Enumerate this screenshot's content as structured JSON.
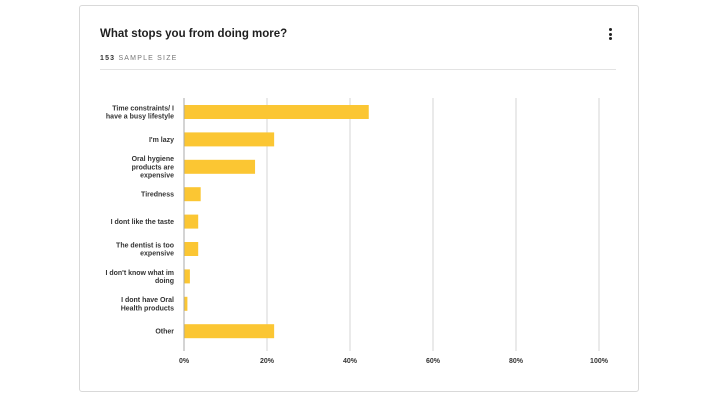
{
  "header": {
    "title": "What stops you from doing more?",
    "sample_size": "153",
    "sample_label": "SAMPLE SIZE"
  },
  "colors": {
    "bar": "#fbc633",
    "grid": "#d6d6d6",
    "axis": "#aaaaaa"
  },
  "chart_data": {
    "type": "bar",
    "orientation": "horizontal",
    "categories": [
      [
        "Time constraints/ I",
        "have a busy lifestyle"
      ],
      [
        "I'm lazy"
      ],
      [
        "Oral hygiene",
        "products are",
        "expensive"
      ],
      [
        "Tiredness"
      ],
      [
        "I dont like the taste"
      ],
      [
        "The dentist is too",
        "expensive"
      ],
      [
        "I don't know what im",
        "doing"
      ],
      [
        "I dont have Oral",
        "Health products"
      ],
      [
        "Other"
      ]
    ],
    "values": [
      44.4,
      21.6,
      17.0,
      3.9,
      3.3,
      3.3,
      1.3,
      0.7,
      21.6
    ],
    "xlim": [
      0,
      100
    ],
    "xticks": [
      0,
      20,
      40,
      60,
      80,
      100
    ],
    "xtick_labels": [
      "0%",
      "20%",
      "40%",
      "60%",
      "80%",
      "100%"
    ],
    "grid": true
  }
}
